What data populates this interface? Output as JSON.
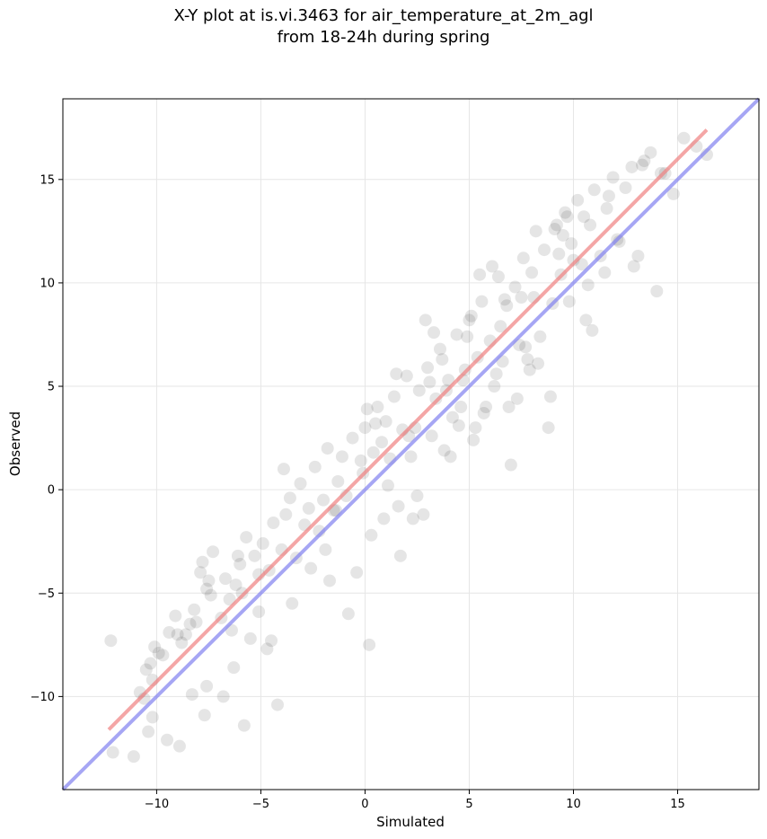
{
  "chart_data": {
    "type": "scatter",
    "title_line1": "X-Y plot at is.vi.3463 for air_temperature_at_2m_agl",
    "title_line2": "from 18-24h during spring",
    "xlabel": "Simulated",
    "ylabel": "Observed",
    "xlim": [
      -14.5,
      18.9
    ],
    "ylim": [
      -14.5,
      18.9
    ],
    "xticks": [
      -10,
      -5,
      0,
      5,
      10,
      15
    ],
    "yticks": [
      -10,
      -5,
      0,
      5,
      10,
      15
    ],
    "xtick_labels": [
      "−10",
      "−5",
      "0",
      "5",
      "10",
      "15"
    ],
    "ytick_labels": [
      "−10",
      "−5",
      "0",
      "5",
      "10",
      "15"
    ],
    "grid": true,
    "point_color": "#000000",
    "regression_line": {
      "color": "#f08080",
      "x": [
        -12.3,
        16.4
      ],
      "y": [
        -11.6,
        17.4
      ]
    },
    "identity_line": {
      "color": "#8080f0",
      "x": [
        -14.5,
        18.9
      ],
      "y": [
        -14.5,
        18.9
      ]
    },
    "series": [
      {
        "x": [
          -12.2,
          -12.1,
          -11.1,
          -10.2,
          -10.4,
          -10.8,
          -10.5,
          -10.3,
          -10.1,
          -9.9,
          -10.6,
          -10.2,
          -9.4,
          -9.7,
          -9.5,
          -9.1,
          -8.9,
          -8.6,
          -8.4,
          -8.2,
          -8.8,
          -8.1,
          -7.9,
          -7.6,
          -7.7,
          -7.4,
          -7.8,
          -7.3,
          -7.6,
          -6.9,
          -6.7,
          -6.5,
          -6.8,
          -6.2,
          -6.4,
          -6.0,
          -5.8,
          -5.5,
          -5.7,
          -5.3,
          -5.1,
          -4.9,
          -4.7,
          -4.4,
          -4.6,
          -4.2,
          -4.0,
          -3.8,
          -3.6,
          -3.3,
          -3.1,
          -2.9,
          -2.7,
          -2.4,
          -2.2,
          -2.0,
          -1.8,
          -1.5,
          -1.3,
          -1.1,
          -0.9,
          -0.6,
          -0.4,
          -0.2,
          0.0,
          0.2,
          0.4,
          0.6,
          0.8,
          1.0,
          1.2,
          1.4,
          1.6,
          1.8,
          2.0,
          2.2,
          2.4,
          2.6,
          2.8,
          3.0,
          3.2,
          3.4,
          3.6,
          3.8,
          4.0,
          4.2,
          4.4,
          4.6,
          4.8,
          5.0,
          5.2,
          5.4,
          5.6,
          5.8,
          6.0,
          6.2,
          6.4,
          6.6,
          6.8,
          7.0,
          7.2,
          7.4,
          7.6,
          7.8,
          8.0,
          8.2,
          8.4,
          8.6,
          8.8,
          9.0,
          9.2,
          9.4,
          9.6,
          9.8,
          10.0,
          10.2,
          10.4,
          10.6,
          10.8,
          11.0,
          11.3,
          11.6,
          11.9,
          12.2,
          12.5,
          12.8,
          13.1,
          13.4,
          13.7,
          14.0,
          14.4,
          14.8,
          15.3,
          15.9,
          16.4,
          -9.0,
          -8.3,
          -5.9,
          -6.3,
          -5.1,
          -4.5,
          -7.5,
          -6.1,
          -3.5,
          -1.9,
          -0.1,
          0.1,
          0.3,
          1.1,
          1.5,
          2.5,
          2.1,
          3.3,
          3.7,
          4.5,
          5.1,
          5.5,
          6.3,
          6.9,
          7.5,
          8.3,
          9.1,
          9.9,
          10.5,
          11.5,
          12.1,
          13.3,
          14.2,
          -2.6,
          -0.8,
          1.7,
          2.9,
          4.1,
          4.9,
          5.7,
          6.5,
          7.3,
          8.1,
          8.9,
          9.7,
          10.9,
          11.7,
          12.9,
          -1.4,
          0.5,
          2.3,
          3.9,
          5.3,
          6.7,
          7.9,
          9.5,
          10.7,
          -3.9,
          -1.7,
          0.9,
          3.1,
          4.7,
          6.1,
          7.7,
          9.3
        ],
        "y": [
          -7.3,
          -12.7,
          -12.9,
          -11.0,
          -11.7,
          -9.8,
          -8.7,
          -8.4,
          -7.6,
          -7.9,
          -10.1,
          -9.2,
          -6.9,
          -8.0,
          -12.1,
          -6.1,
          -12.4,
          -7.0,
          -6.5,
          -5.8,
          -7.4,
          -6.4,
          -4.0,
          -4.8,
          -10.9,
          -5.1,
          -3.5,
          -3.0,
          -9.5,
          -6.2,
          -4.3,
          -5.3,
          -10.0,
          -4.6,
          -6.8,
          -3.6,
          -11.4,
          -7.2,
          -2.3,
          -3.2,
          -4.1,
          -2.6,
          -7.7,
          -1.6,
          -3.9,
          -10.4,
          -2.9,
          -1.2,
          -0.4,
          -3.3,
          0.3,
          -1.7,
          -0.9,
          1.1,
          -2.0,
          -0.5,
          2.0,
          -1.0,
          0.4,
          1.6,
          -0.3,
          2.5,
          -4.0,
          1.4,
          3.0,
          -7.5,
          1.8,
          4.0,
          2.3,
          3.3,
          1.5,
          4.5,
          -0.8,
          2.9,
          5.5,
          1.6,
          3.0,
          4.8,
          -1.2,
          5.9,
          2.6,
          4.4,
          6.8,
          1.9,
          5.3,
          3.5,
          7.5,
          4.0,
          5.8,
          8.2,
          2.4,
          6.4,
          9.1,
          4.0,
          7.2,
          5.0,
          10.3,
          6.2,
          8.9,
          1.2,
          9.8,
          7.0,
          11.2,
          6.3,
          10.5,
          12.5,
          7.4,
          11.6,
          3.0,
          9.0,
          12.8,
          10.4,
          13.4,
          9.1,
          11.1,
          14.0,
          10.9,
          8.2,
          12.8,
          14.5,
          11.3,
          13.6,
          15.1,
          12.0,
          14.6,
          15.6,
          11.3,
          15.9,
          16.3,
          9.6,
          15.3,
          14.3,
          17.0,
          16.6,
          16.2,
          -7.0,
          -9.9,
          -5.0,
          -8.6,
          -5.9,
          -7.3,
          -4.4,
          -3.2,
          -5.5,
          -2.9,
          0.8,
          3.9,
          -2.2,
          0.2,
          5.6,
          -0.3,
          2.6,
          7.6,
          6.3,
          3.1,
          8.4,
          10.4,
          5.6,
          4.0,
          9.3,
          6.1,
          12.6,
          11.9,
          13.2,
          10.5,
          12.1,
          15.7,
          15.3,
          -3.8,
          -6.0,
          -3.2,
          8.2,
          1.6,
          7.4,
          3.7,
          7.9,
          4.4,
          9.3,
          4.5,
          13.2,
          7.7,
          14.2,
          10.8,
          -1.0,
          3.2,
          -1.4,
          4.8,
          3.0,
          9.2,
          5.8,
          12.3,
          9.9,
          1.0,
          -4.4,
          -1.4,
          5.2,
          5.3,
          10.8,
          6.9,
          11.4
        ]
      }
    ]
  }
}
